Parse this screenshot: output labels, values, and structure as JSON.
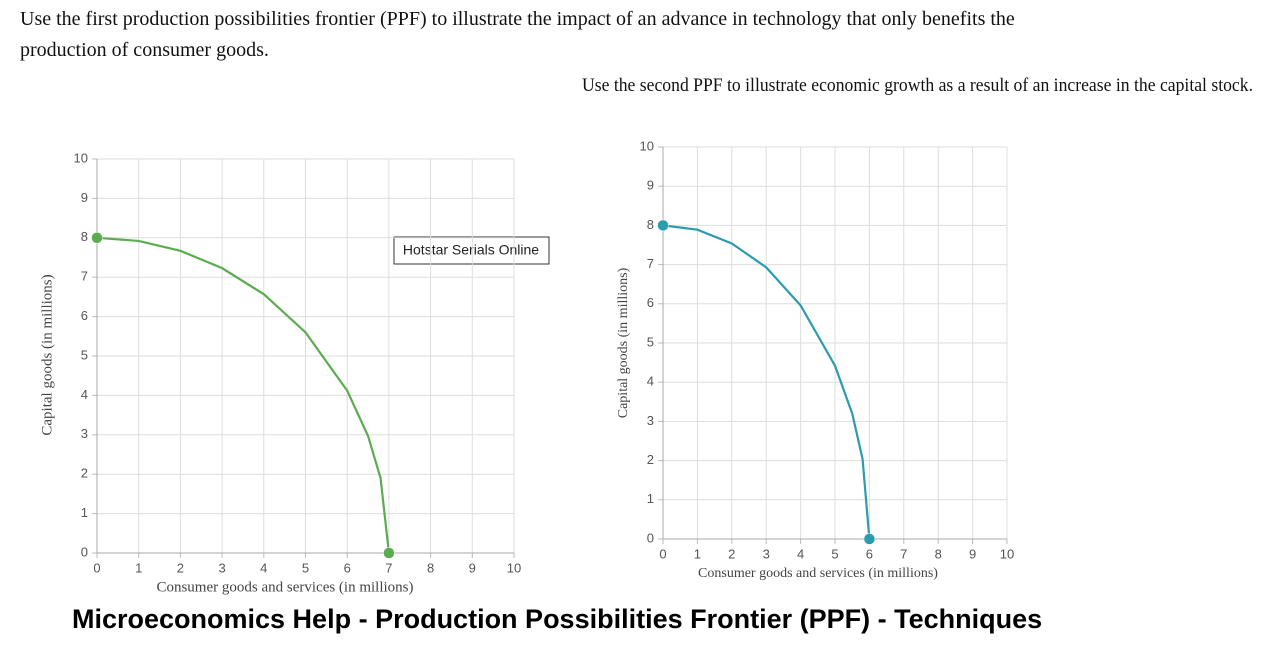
{
  "prompt_1": "Use the first production possibilities frontier (PPF) to illustrate the impact of an advance in technology that only benefits the",
  "prompt_1b": "production of consumer goods.",
  "prompt_2": "Use the second PPF to illustrate economic growth as a result of an increase in the capital stock.",
  "tooltip": "Hotstar Serials Online",
  "banner": "Microeconomics Help - Production Possibilities Frontier (PPF) - Techniques",
  "chart_data": [
    {
      "type": "line",
      "x_label": "Consumer goods and services (in millions)",
      "y_label": "Capital goods (in millions)",
      "x": [
        0,
        1,
        2,
        3,
        4,
        5,
        6,
        6.5,
        6.8,
        7
      ],
      "series": [
        {
          "color": "#5aac4f",
          "values": [
            8,
            7.92,
            7.67,
            7.23,
            6.57,
            5.6,
            4.12,
            2.97,
            1.9,
            0
          ]
        }
      ],
      "xlim": [
        0,
        10
      ],
      "ylim": [
        0,
        10
      ],
      "xticks": [
        0,
        1,
        2,
        3,
        4,
        5,
        6,
        7,
        8,
        9,
        10
      ],
      "yticks": [
        0,
        1,
        2,
        3,
        4,
        5,
        6,
        7,
        8,
        9,
        10
      ],
      "grid": true
    },
    {
      "type": "line",
      "x_label": "Consumer goods and services (in millions)",
      "y_label": "Capital goods (in millions)",
      "x": [
        0,
        1,
        2,
        3,
        4,
        5,
        5.5,
        5.8,
        6
      ],
      "series": [
        {
          "color": "#2a9bb0",
          "values": [
            8,
            7.89,
            7.54,
            6.93,
            5.96,
            4.42,
            3.2,
            2.05,
            0
          ]
        }
      ],
      "xlim": [
        0,
        10
      ],
      "ylim": [
        0,
        10
      ],
      "xticks": [
        0,
        1,
        2,
        3,
        4,
        5,
        6,
        7,
        8,
        9,
        10
      ],
      "yticks": [
        0,
        1,
        2,
        3,
        4,
        5,
        6,
        7,
        8,
        9,
        10
      ],
      "grid": true
    }
  ]
}
